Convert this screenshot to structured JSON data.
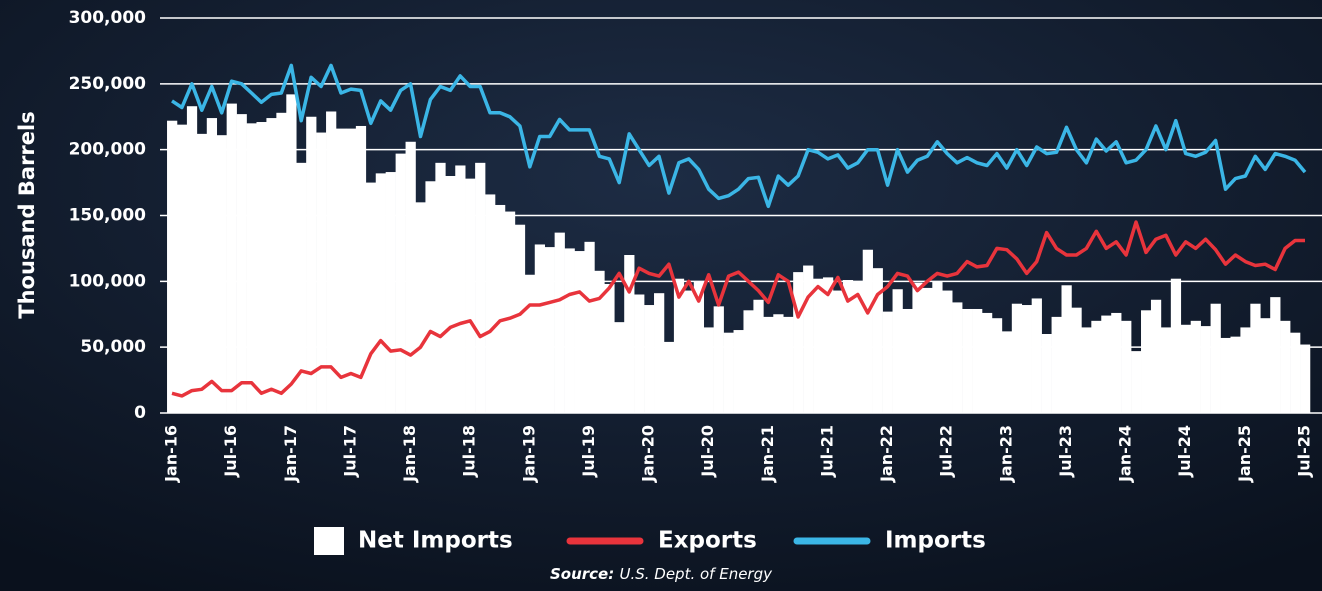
{
  "chart_data": {
    "type": "bar",
    "ylabel": "Thousand Barrels",
    "source_label": "Source:",
    "source": "U.S. Dept. of Energy",
    "categories": [
      "Jan-16",
      null,
      null,
      null,
      null,
      null,
      "Jul-16",
      null,
      null,
      null,
      null,
      null,
      "Jan-17",
      null,
      null,
      null,
      null,
      null,
      "Jul-17",
      null,
      null,
      null,
      null,
      null,
      "Jan-18",
      null,
      null,
      null,
      null,
      null,
      "Jul-18",
      null,
      null,
      null,
      null,
      null,
      "Jan-19",
      null,
      null,
      null,
      null,
      null,
      "Jul-19",
      null,
      null,
      null,
      null,
      null,
      "Jan-20",
      null,
      null,
      null,
      null,
      null,
      "Jul-20",
      null,
      null,
      null,
      null,
      null,
      "Jan-21",
      null,
      null,
      null,
      null,
      null,
      "Jul-21",
      null,
      null,
      null,
      null,
      null,
      "Jan-22",
      null,
      null,
      null,
      null,
      null,
      "Jul-22",
      null,
      null,
      null,
      null,
      null,
      "Jan-23",
      null,
      null,
      null,
      null,
      null,
      "Jul-23",
      null,
      null,
      null,
      null,
      null,
      "Jan-24",
      null,
      null,
      null,
      null,
      null,
      "Jul-24",
      null,
      null,
      null,
      null,
      null,
      "Jan-25",
      null,
      null,
      null,
      null,
      null,
      "Jul-25"
    ],
    "ylim": [
      0,
      300000
    ],
    "yticks": [
      0,
      {
        "value": 50000,
        "label": "50,000"
      },
      {
        "value": 100000,
        "label": "100,000"
      },
      {
        "value": 150000,
        "label": "150,000"
      },
      {
        "value": 200000,
        "label": "200,000"
      },
      {
        "value": 250000,
        "label": "250,000"
      },
      {
        "value": 300000,
        "label": "300,000"
      }
    ],
    "grid": true,
    "series": [
      {
        "name": "Net Imports",
        "type": "bar",
        "color": "#ffffff",
        "values": [
          222000,
          219000,
          233000,
          212000,
          224000,
          211000,
          235000,
          227000,
          220000,
          221000,
          224000,
          228000,
          242000,
          190000,
          225000,
          213000,
          229000,
          216000,
          216000,
          218000,
          175000,
          182000,
          183000,
          197000,
          206000,
          160000,
          176000,
          190000,
          180000,
          188000,
          178000,
          190000,
          166000,
          158000,
          153000,
          143000,
          105000,
          128000,
          126000,
          137000,
          125000,
          123000,
          130000,
          108000,
          98000,
          69000,
          120000,
          90000,
          82000,
          91000,
          54000,
          102000,
          93000,
          100000,
          65000,
          81000,
          61000,
          63000,
          78000,
          86000,
          73000,
          75000,
          73000,
          107000,
          112000,
          102000,
          103000,
          93000,
          101000,
          100000,
          124000,
          110000,
          77000,
          94000,
          79000,
          99000,
          95000,
          100000,
          93000,
          84000,
          79000,
          79000,
          76000,
          72000,
          62000,
          83000,
          82000,
          87000,
          60000,
          73000,
          97000,
          80000,
          65000,
          70000,
          74000,
          76000,
          70000,
          47000,
          78000,
          86000,
          65000,
          102000,
          67000,
          70000,
          66000,
          83000,
          57000,
          58000,
          65000,
          83000,
          72000,
          88000,
          70000,
          61000,
          52000
        ]
      },
      {
        "name": "Exports",
        "type": "line",
        "color": "#e8343c",
        "values": [
          15000,
          13000,
          17000,
          18000,
          24000,
          17000,
          17000,
          23000,
          23000,
          15000,
          18000,
          15000,
          22000,
          32000,
          30000,
          35000,
          35000,
          27000,
          30000,
          27000,
          45000,
          55000,
          47000,
          48000,
          44000,
          50000,
          62000,
          58000,
          65000,
          68000,
          70000,
          58000,
          62000,
          70000,
          72000,
          75000,
          82000,
          82000,
          84000,
          86000,
          90000,
          92000,
          85000,
          87000,
          95000,
          106000,
          92000,
          110000,
          106000,
          104000,
          113000,
          88000,
          100000,
          85000,
          105000,
          82000,
          104000,
          107000,
          100000,
          93000,
          84000,
          105000,
          100000,
          73000,
          88000,
          96000,
          90000,
          103000,
          85000,
          90000,
          76000,
          90000,
          96000,
          106000,
          104000,
          93000,
          100000,
          106000,
          104000,
          106000,
          115000,
          111000,
          112000,
          125000,
          124000,
          117000,
          106000,
          115000,
          137000,
          125000,
          120000,
          120000,
          125000,
          138000,
          125000,
          130000,
          120000,
          145000,
          122000,
          132000,
          135000,
          120000,
          130000,
          125000,
          132000,
          124000,
          113000,
          120000,
          115000,
          112000,
          113000,
          109000,
          125000,
          131000,
          131000
        ]
      },
      {
        "name": "Imports",
        "type": "line",
        "color": "#3bb6e6",
        "values": [
          237000,
          232000,
          250000,
          230000,
          248000,
          228000,
          252000,
          250000,
          243000,
          236000,
          242000,
          243000,
          264000,
          222000,
          255000,
          248000,
          264000,
          243000,
          246000,
          245000,
          220000,
          237000,
          230000,
          245000,
          250000,
          210000,
          238000,
          248000,
          245000,
          256000,
          248000,
          248000,
          228000,
          228000,
          225000,
          218000,
          187000,
          210000,
          210000,
          223000,
          215000,
          215000,
          215000,
          195000,
          193000,
          175000,
          212000,
          200000,
          188000,
          195000,
          167000,
          190000,
          193000,
          185000,
          170000,
          163000,
          165000,
          170000,
          178000,
          179000,
          157000,
          180000,
          173000,
          180000,
          200000,
          198000,
          193000,
          196000,
          186000,
          190000,
          200000,
          200000,
          173000,
          200000,
          183000,
          192000,
          195000,
          206000,
          197000,
          190000,
          194000,
          190000,
          188000,
          197000,
          186000,
          200000,
          188000,
          202000,
          197000,
          198000,
          217000,
          200000,
          190000,
          208000,
          199000,
          206000,
          190000,
          192000,
          200000,
          218000,
          200000,
          222000,
          197000,
          195000,
          198000,
          207000,
          170000,
          178000,
          180000,
          195000,
          185000,
          197000,
          195000,
          192000,
          183000
        ]
      }
    ]
  }
}
